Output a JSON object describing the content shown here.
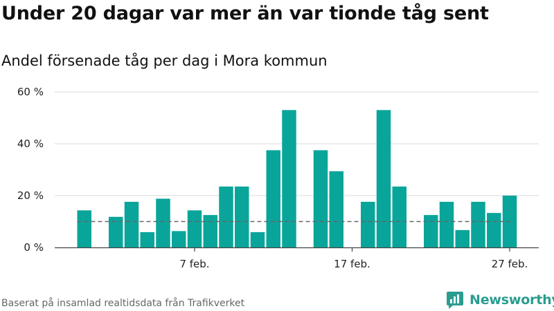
{
  "chart_data": {
    "type": "bar",
    "title": "Under 20 dagar var mer än var tionde tåg sent",
    "subtitle": "Andel försenade tåg per dag i Mora kommun",
    "x_start": "2021-01-31",
    "x_labels": [
      {
        "label": "7 feb.",
        "x": "2021-02-07"
      },
      {
        "label": "17 feb.",
        "x": "2021-02-17"
      },
      {
        "label": "27 feb.",
        "x": "2021-02-27"
      }
    ],
    "values": [
      14.3,
      null,
      11.8,
      17.6,
      5.9,
      18.8,
      6.3,
      14.3,
      12.5,
      23.5,
      23.5,
      5.9,
      37.5,
      53.0,
      null,
      37.5,
      29.4,
      null,
      17.6,
      53.0,
      23.5,
      null,
      12.5,
      17.6,
      6.7,
      17.6,
      13.3,
      20.0
    ],
    "y_ticks": [
      "0 %",
      "20 %",
      "40 %",
      "60 %"
    ],
    "ylim": [
      0,
      60
    ],
    "reference_line": 10,
    "colors": {
      "bar": "#0aa59a",
      "reference": "#666666",
      "grid": "#d9d9d9"
    }
  },
  "footer": {
    "source": "Baserat på insamlad realtidsdata från Trafikverket",
    "brand": "Newsworthy"
  },
  "brand_icon": "bar-chart-logo-icon"
}
